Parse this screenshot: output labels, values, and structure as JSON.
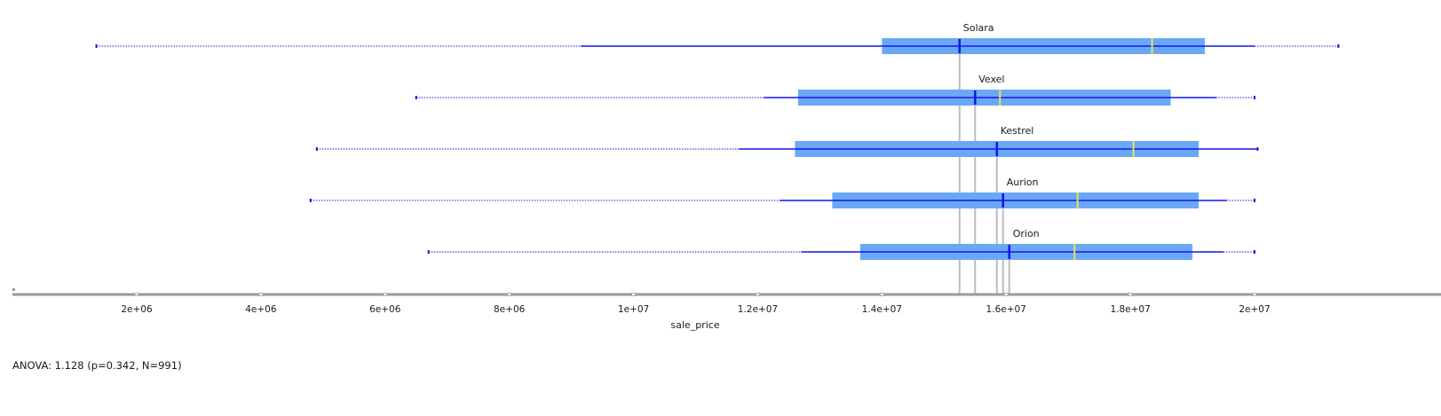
{
  "chart_data": {
    "type": "boxplot",
    "xlabel": "sale_price",
    "x_ticks": [
      "2e+06",
      "4e+06",
      "6e+06",
      "8e+06",
      "1e+07",
      "1.2e+07",
      "1.4e+07",
      "1.6e+07",
      "1.8e+07",
      "2e+07"
    ],
    "x_tick_values": [
      2000000,
      4000000,
      6000000,
      8000000,
      10000000,
      12000000,
      14000000,
      16000000,
      18000000,
      20000000
    ],
    "xlim": [
      0,
      22000000
    ],
    "colors": {
      "box": "#6aa8f7",
      "whisker": "#1515e6",
      "median": "#e6e64a",
      "mean": "#1515e6",
      "mean_line": "#bdbdbd",
      "axis": "#9a9a9a"
    },
    "series": [
      {
        "name": "Solara",
        "min": 1350000,
        "q1_whisker_start": 9150000,
        "q1": 14000000,
        "mean": 15250000,
        "median": 18350000,
        "q3": 19200000,
        "max": 21350000,
        "max_tail_end": 20000000
      },
      {
        "name": "Vexel",
        "min": 6500000,
        "q1_whisker_start": 12100000,
        "q1": 12650000,
        "mean": 15500000,
        "median": 15900000,
        "q3": 18650000,
        "max": 20000000,
        "max_tail_end": 19380000
      },
      {
        "name": "Kestrel",
        "min": 4900000,
        "q1_whisker_start": 11700000,
        "q1": 12600000,
        "mean": 15850000,
        "median": 18050000,
        "q3": 19100000,
        "max": 20050000,
        "max_tail_end": 20050000
      },
      {
        "name": "Aurion",
        "min": 4800000,
        "q1_whisker_start": 12350000,
        "q1": 13200000,
        "mean": 15950000,
        "median": 17150000,
        "q3": 19100000,
        "max": 20000000,
        "max_tail_end": 19550000
      },
      {
        "name": "Orion",
        "min": 6700000,
        "q1_whisker_start": 12700000,
        "q1": 13650000,
        "mean": 16050000,
        "median": 17100000,
        "q3": 19000000,
        "max": 20000000,
        "max_tail_end": 19500000
      }
    ]
  },
  "footer": {
    "stats": "ANOVA: 1.128 (p=0.342, N=991)"
  }
}
